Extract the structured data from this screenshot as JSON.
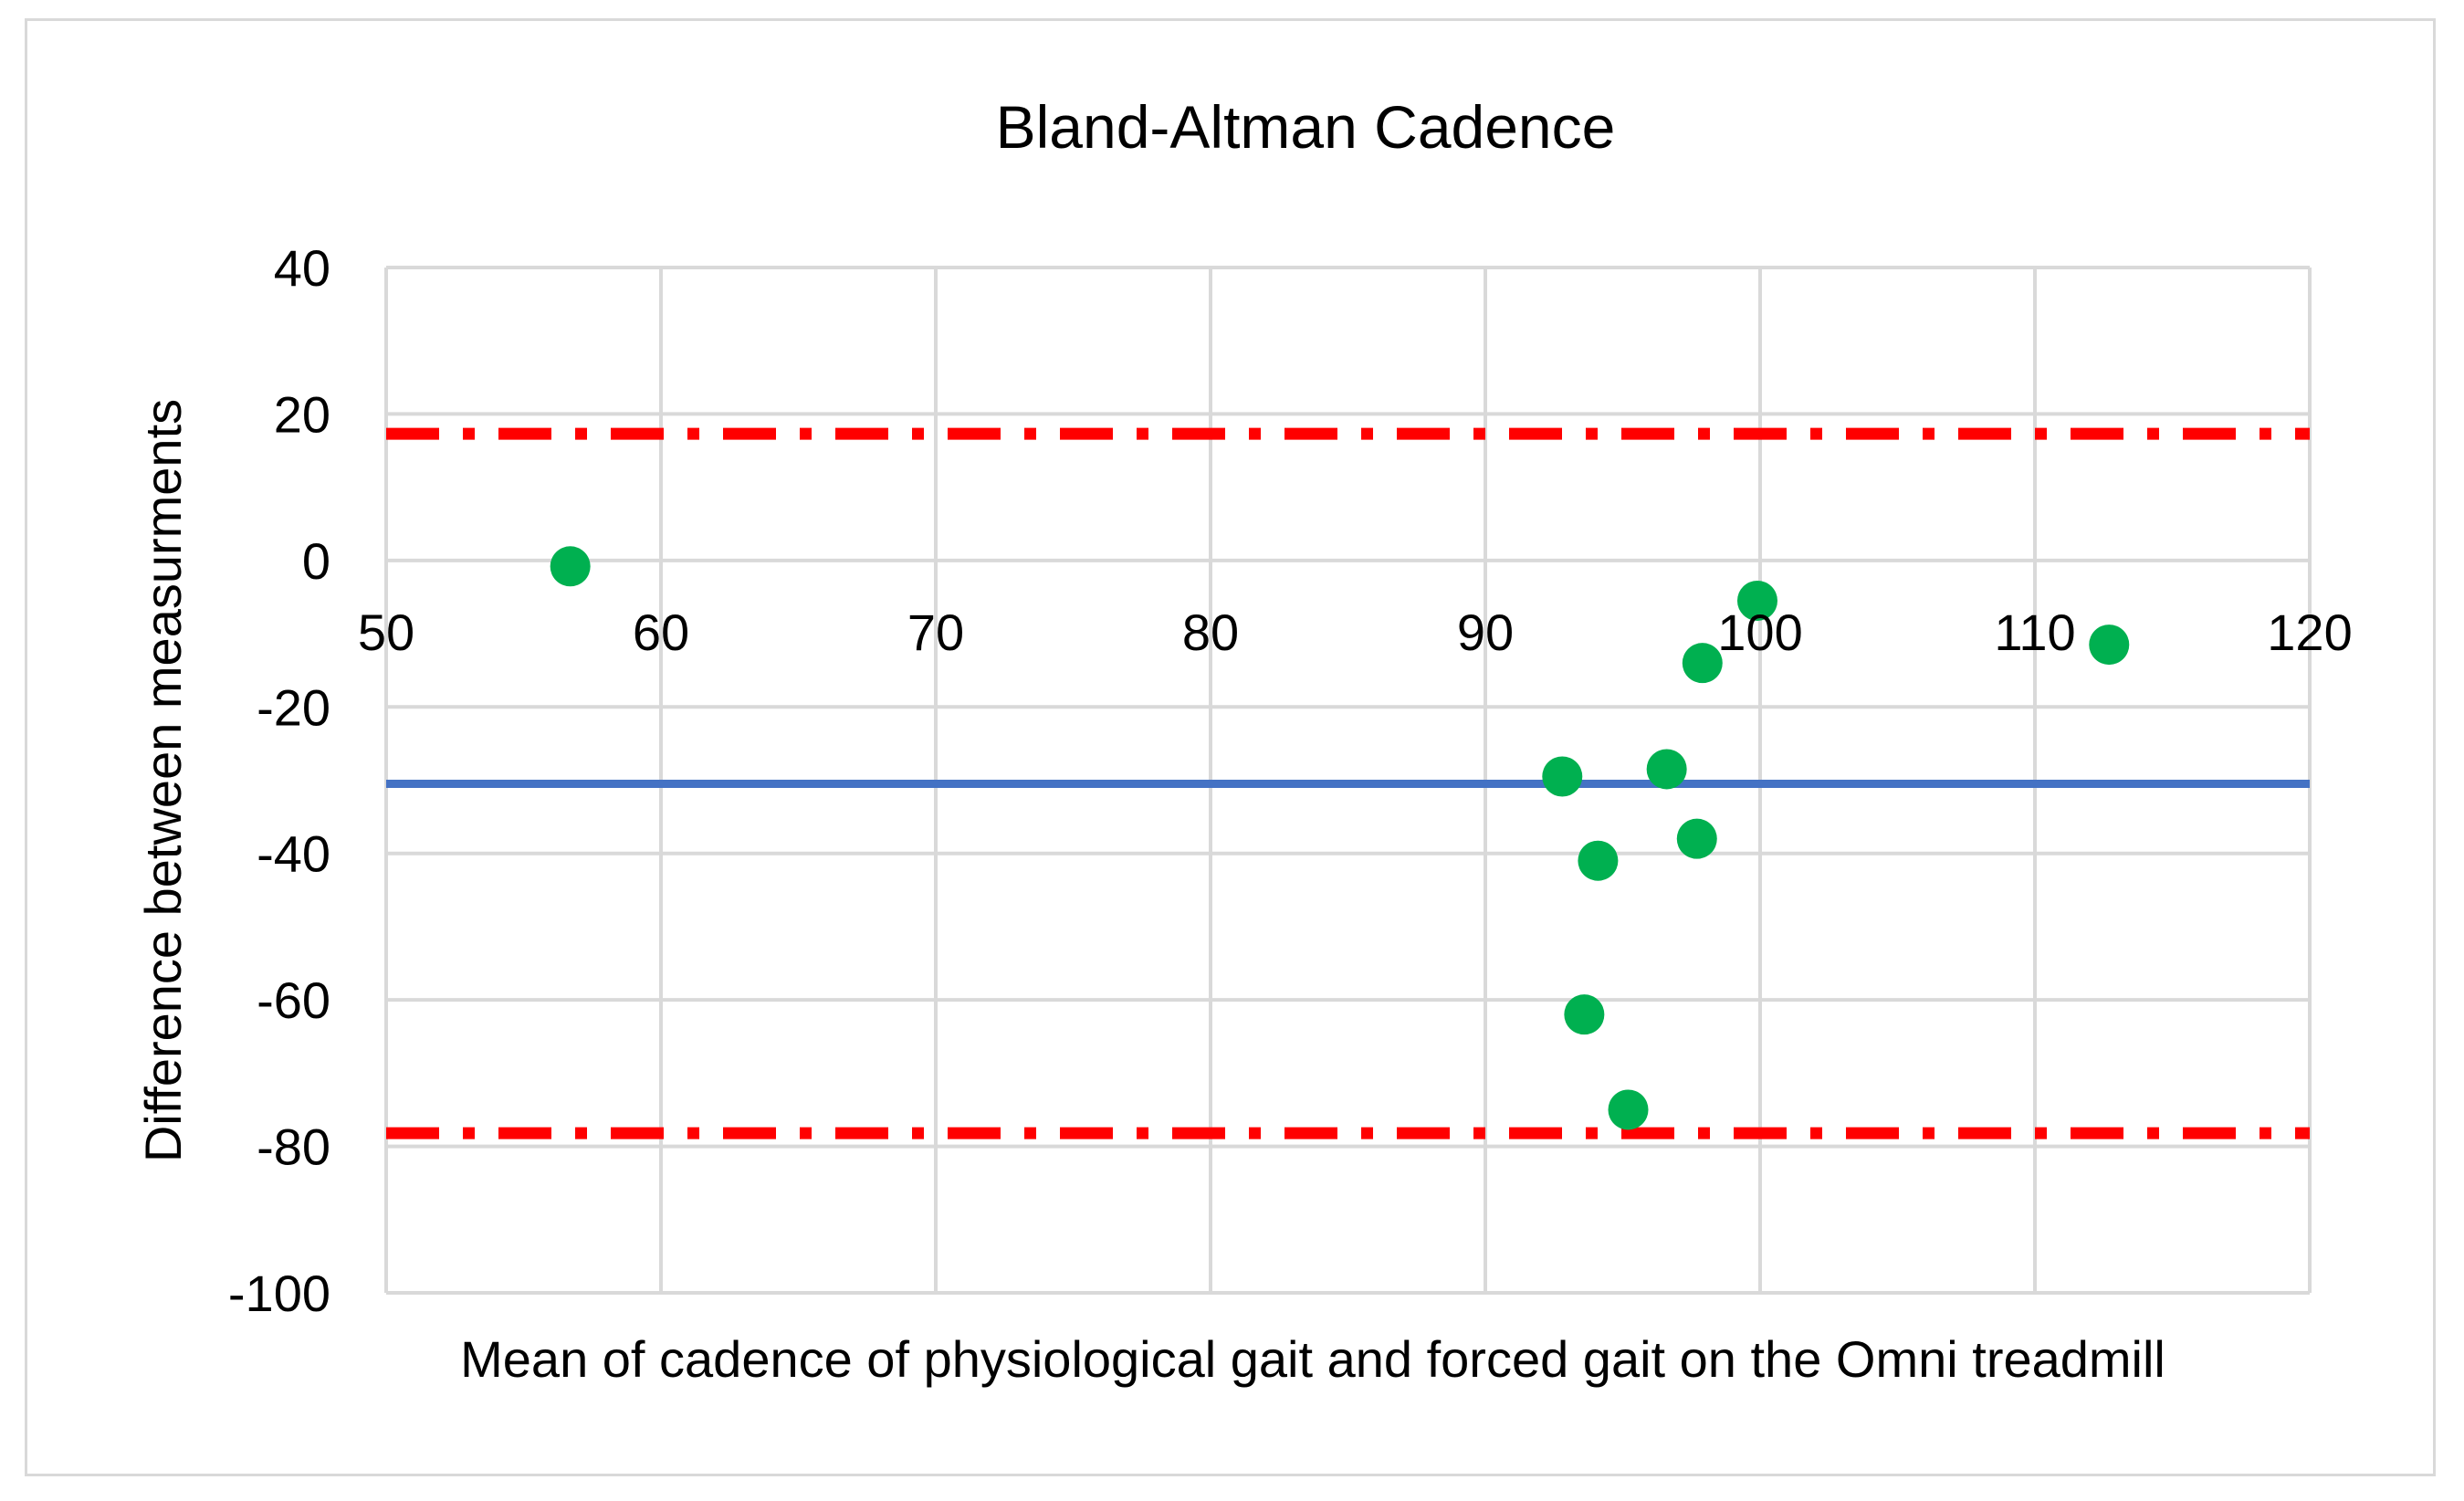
{
  "chart_data": {
    "type": "scatter",
    "title": "Bland-Altman Cadence",
    "xlabel": "Mean of cadence of physiological gait and forced gait on the Omni treadmill",
    "ylabel": "Difference between measurments",
    "xlim": [
      50,
      120
    ],
    "ylim": [
      -100,
      40
    ],
    "x_ticks": [
      50,
      60,
      70,
      80,
      90,
      100,
      110,
      120
    ],
    "y_ticks": [
      40,
      20,
      0,
      -20,
      -40,
      -60,
      -80,
      -100
    ],
    "grid": true,
    "x_tick_labels_position": "at y = 0",
    "points": [
      {
        "x": 56.7,
        "y": -0.8
      },
      {
        "x": 92.8,
        "y": -29.5
      },
      {
        "x": 93.6,
        "y": -62.0
      },
      {
        "x": 94.1,
        "y": -41.0
      },
      {
        "x": 95.2,
        "y": -75.0
      },
      {
        "x": 96.6,
        "y": -28.5
      },
      {
        "x": 97.7,
        "y": -38.0
      },
      {
        "x": 97.9,
        "y": -14.0
      },
      {
        "x": 99.9,
        "y": -5.5
      },
      {
        "x": 112.7,
        "y": -11.5
      }
    ],
    "reference_lines": [
      {
        "role": "mean difference",
        "y": -30.5,
        "style": "solid",
        "color": "#4472c4"
      },
      {
        "role": "upper limit of agreement",
        "y": 17.3,
        "style": "dash-dot",
        "color": "#ff0000"
      },
      {
        "role": "lower limit of agreement",
        "y": -78.2,
        "style": "dash-dot",
        "color": "#ff0000"
      }
    ],
    "colors": {
      "points": "#00b050",
      "grid": "#d9d9d9",
      "axis": "#d9d9d9"
    }
  }
}
